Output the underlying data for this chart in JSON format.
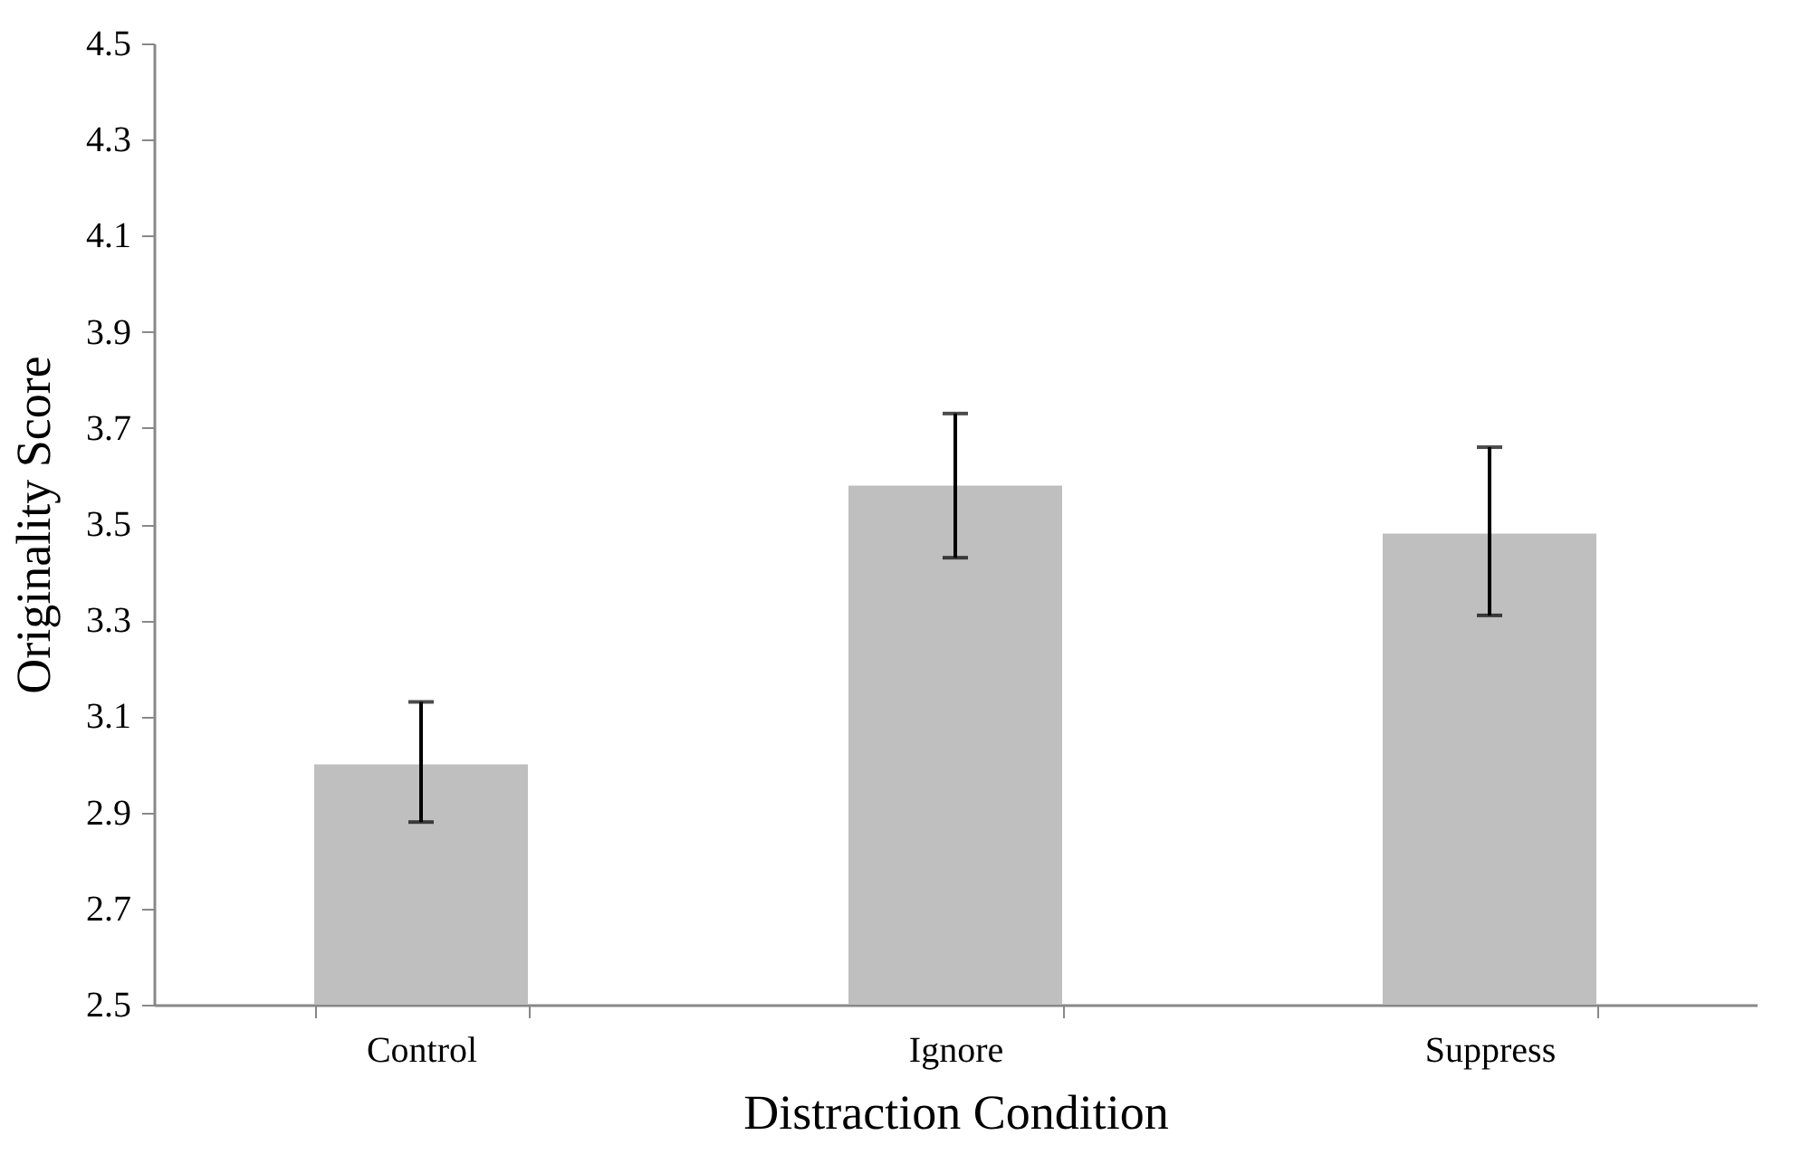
{
  "chart_data": {
    "type": "bar",
    "xlabel": "Distraction Condition",
    "ylabel": "Originality Score",
    "categories": [
      "Control",
      "Ignore",
      "Suppress"
    ],
    "values": [
      3.0,
      3.58,
      3.48
    ],
    "errors": [
      [
        2.88,
        3.13
      ],
      [
        3.43,
        3.73
      ],
      [
        3.31,
        3.66
      ]
    ],
    "color": "#bfbfbf",
    "ylim": [
      2.5,
      4.5
    ],
    "yticks": [
      2.5,
      2.7,
      2.9,
      3.1,
      3.3,
      3.5,
      3.7,
      3.9,
      4.1,
      4.3,
      4.5
    ],
    "grid": false
  }
}
